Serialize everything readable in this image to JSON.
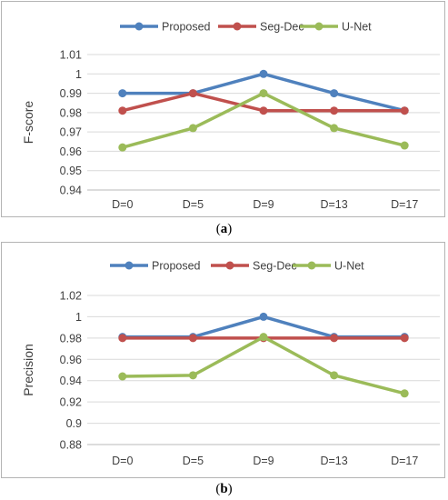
{
  "chart_data": [
    {
      "type": "line",
      "title": "",
      "xlabel": "",
      "ylabel": "F-score",
      "categories": [
        "D=0",
        "D=5",
        "D=9",
        "D=13",
        "D=17"
      ],
      "ylim": [
        0.94,
        1.01
      ],
      "yticks": [
        "0.94",
        "0.95",
        "0.96",
        "0.97",
        "0.98",
        "0.99",
        "1",
        "1.01"
      ],
      "yticks_values": [
        0.94,
        0.95,
        0.96,
        0.97,
        0.98,
        0.99,
        1.0,
        1.01
      ],
      "grid": true,
      "legend_position": "top-center",
      "series": [
        {
          "name": "Proposed",
          "color": "#4f81bd",
          "values": [
            0.99,
            0.99,
            1.0,
            0.99,
            0.981
          ]
        },
        {
          "name": "Seg-Dec",
          "color": "#c0504d",
          "values": [
            0.981,
            0.99,
            0.981,
            0.981,
            0.981
          ]
        },
        {
          "name": "U-Net",
          "color": "#9bbb59",
          "values": [
            0.962,
            0.972,
            0.99,
            0.972,
            0.963
          ]
        }
      ]
    },
    {
      "type": "line",
      "title": "",
      "xlabel": "",
      "ylabel": "Precision",
      "categories": [
        "D=0",
        "D=5",
        "D=9",
        "D=13",
        "D=17"
      ],
      "ylim": [
        0.88,
        1.02
      ],
      "yticks": [
        "0.88",
        "0.9",
        "0.92",
        "0.94",
        "0.96",
        "0.98",
        "1",
        "1.02"
      ],
      "yticks_values": [
        0.88,
        0.9,
        0.92,
        0.94,
        0.96,
        0.98,
        1.0,
        1.02
      ],
      "grid": true,
      "legend_position": "top-center",
      "series": [
        {
          "name": "Proposed",
          "color": "#4f81bd",
          "values": [
            0.981,
            0.981,
            1.0,
            0.981,
            0.981
          ]
        },
        {
          "name": "Seg-Dec",
          "color": "#c0504d",
          "values": [
            0.98,
            0.98,
            0.98,
            0.98,
            0.98
          ]
        },
        {
          "name": "U-Net",
          "color": "#9bbb59",
          "values": [
            0.944,
            0.945,
            0.981,
            0.945,
            0.928
          ]
        }
      ]
    }
  ],
  "captions": {
    "a": {
      "open": "(",
      "letter": "a",
      "close": ")"
    },
    "b": {
      "open": "(",
      "letter": "b",
      "close": ")"
    }
  }
}
